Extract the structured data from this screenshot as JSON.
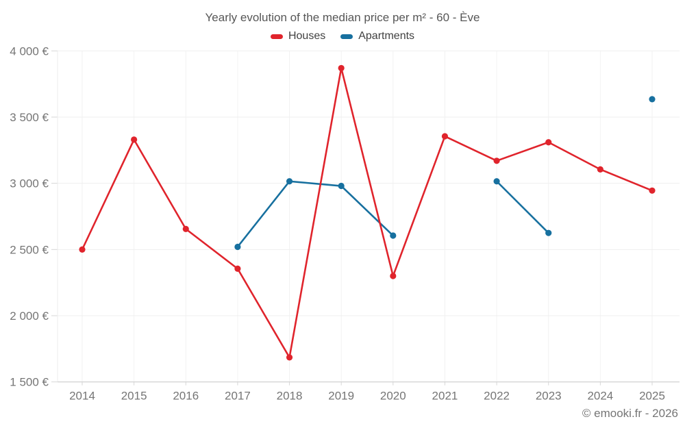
{
  "page": {
    "footer": "© emooki.fr - 2026"
  },
  "chart_data": {
    "type": "line",
    "title": "Yearly evolution of the median price per m² - 60 - Ève",
    "categories": [
      "2014",
      "2015",
      "2016",
      "2017",
      "2018",
      "2019",
      "2020",
      "2021",
      "2022",
      "2023",
      "2024",
      "2025"
    ],
    "series": [
      {
        "name": "Houses",
        "color": "#e0242c",
        "values": [
          2500,
          3330,
          2655,
          2355,
          1685,
          3870,
          2300,
          3355,
          3170,
          3310,
          3105,
          2945
        ]
      },
      {
        "name": "Apartments",
        "color": "#17709f",
        "values": [
          null,
          null,
          null,
          2520,
          3015,
          2980,
          2605,
          null,
          3015,
          2625,
          null,
          3635
        ]
      }
    ],
    "xlabel": "",
    "ylabel": "",
    "ylim": [
      1500,
      4000
    ],
    "y_tick_step": 500,
    "y_tick_labels": [
      "1 500 €",
      "2 000 €",
      "2 500 €",
      "3 000 €",
      "3 500 €",
      "4 000 €"
    ],
    "grid": true,
    "legend_position": "top",
    "marker": "circle"
  },
  "colors": {
    "grid_horizontal": "#efefef",
    "grid_vertical": "#f2f2f2",
    "axis_line": "#c9c9c9",
    "tick_mark": "#d6d6d6",
    "plot_left_border": "#ececec",
    "axis_text": "#757575"
  }
}
